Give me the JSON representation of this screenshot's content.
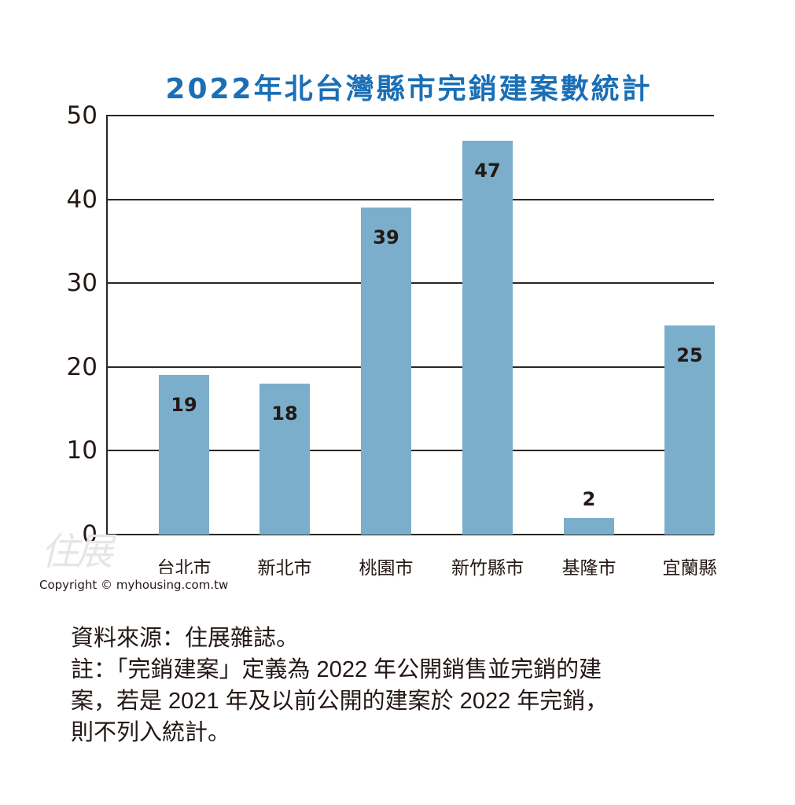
{
  "title": "2022年北台灣縣市完銷建案數統計",
  "chart_data": {
    "type": "bar",
    "title": "2022年北台灣縣市完銷建案數統計",
    "xlabel": "",
    "ylabel": "",
    "categories": [
      "台北市",
      "新北市",
      "桃園市",
      "新竹縣市",
      "基隆市",
      "宜蘭縣"
    ],
    "values": [
      19,
      18,
      39,
      47,
      2,
      25
    ],
    "ylim": [
      0,
      50
    ],
    "yticks": [
      "0",
      "10",
      "20",
      "30",
      "40",
      "50"
    ],
    "grid": true,
    "data_labels": [
      "19",
      "18",
      "39",
      "47",
      "2",
      "25"
    ],
    "bar_color": "#7baecb",
    "legend": null
  },
  "colors": {
    "title": "#1a6fb5",
    "bar": "#7baecb",
    "text": "#231815",
    "grid": "#2b2523"
  },
  "watermark": "住展",
  "copyright": "Copyright © myhousing.com.tw",
  "notes": {
    "source": "資料來源：住展雜誌。",
    "line1": "註：「完銷建案」定義為 2022 年公開銷售並完銷的建",
    "line2": "案，若是 2021 年及以前公開的建案於 2022 年完銷，",
    "line3": "則不列入統計。"
  }
}
